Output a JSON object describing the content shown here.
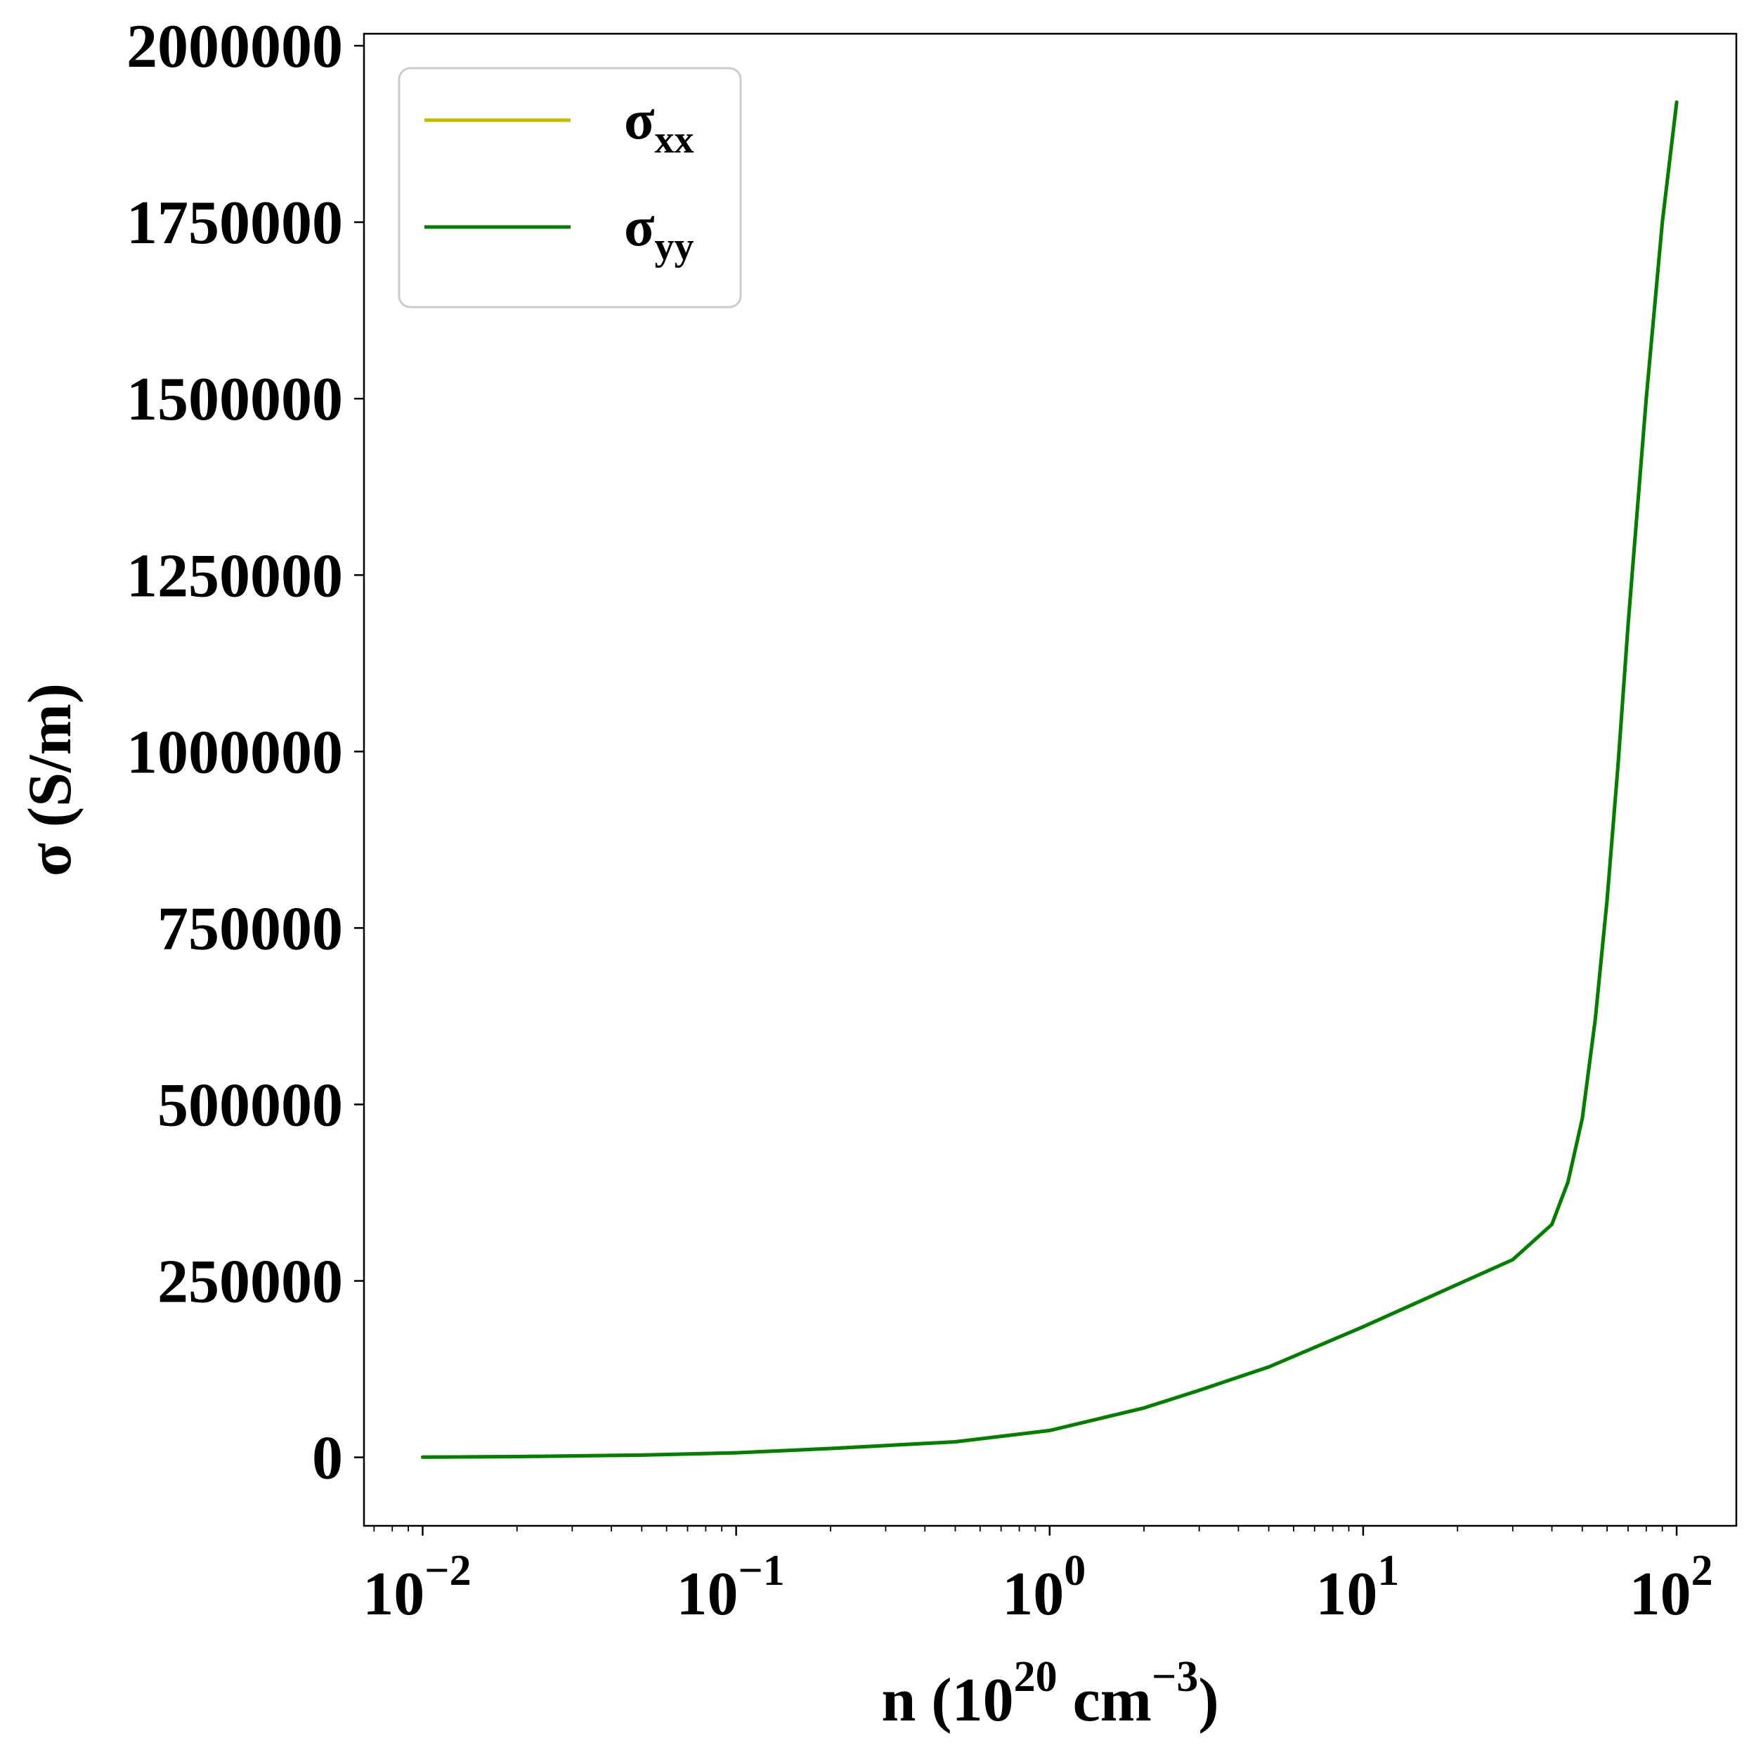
{
  "chart_data": {
    "type": "line",
    "title": "",
    "xlabel": {
      "base": "n (10",
      "exp1": "20",
      "mid": " cm",
      "exp2": "−3",
      "end": ")"
    },
    "ylabel": "σ (S/m)",
    "xscale": "log",
    "xlim": [
      0.0065,
      155
    ],
    "ylim": [
      -97000,
      2017000
    ],
    "x_ticks": [
      {
        "value": 0.01,
        "base": "10",
        "exp": "−2"
      },
      {
        "value": 0.1,
        "base": "10",
        "exp": "−1"
      },
      {
        "value": 1,
        "base": "10",
        "exp": "0"
      },
      {
        "value": 10,
        "base": "10",
        "exp": "1"
      },
      {
        "value": 100,
        "base": "10",
        "exp": "2"
      }
    ],
    "y_ticks": [
      {
        "value": 0,
        "label": "0"
      },
      {
        "value": 250000,
        "label": "250000"
      },
      {
        "value": 500000,
        "label": "500000"
      },
      {
        "value": 750000,
        "label": "750000"
      },
      {
        "value": 1000000,
        "label": "1000000"
      },
      {
        "value": 1250000,
        "label": "1250000"
      },
      {
        "value": 1500000,
        "label": "1500000"
      },
      {
        "value": 1750000,
        "label": "1750000"
      },
      {
        "value": 2000000,
        "label": "2000000"
      }
    ],
    "grid": false,
    "legend_position": "top-left",
    "series": [
      {
        "name": "σ",
        "name_sub": "xx",
        "color": "#bfbf00",
        "x": [
          0.01,
          0.02,
          0.05,
          0.1,
          0.2,
          0.5,
          1,
          2,
          3,
          5,
          10,
          20,
          30,
          40,
          45,
          50,
          55,
          60,
          65,
          70,
          80,
          90,
          100
        ],
        "y": [
          300,
          1100,
          3200,
          6500,
          12500,
          22000,
          38000,
          70000,
          95000,
          128000,
          185000,
          245000,
          280000,
          330000,
          390000,
          480000,
          620000,
          790000,
          980000,
          1180000,
          1500000,
          1750000,
          1920000
        ]
      },
      {
        "name": "σ",
        "name_sub": "yy",
        "color": "#007f00",
        "x": [
          0.01,
          0.02,
          0.05,
          0.1,
          0.2,
          0.5,
          1,
          2,
          3,
          5,
          10,
          20,
          30,
          40,
          45,
          50,
          55,
          60,
          65,
          70,
          80,
          90,
          100
        ],
        "y": [
          300,
          1100,
          3200,
          6500,
          12500,
          22000,
          38000,
          70000,
          95000,
          128000,
          185000,
          245000,
          280000,
          330000,
          390000,
          480000,
          620000,
          790000,
          980000,
          1180000,
          1500000,
          1750000,
          1920000
        ]
      }
    ]
  }
}
